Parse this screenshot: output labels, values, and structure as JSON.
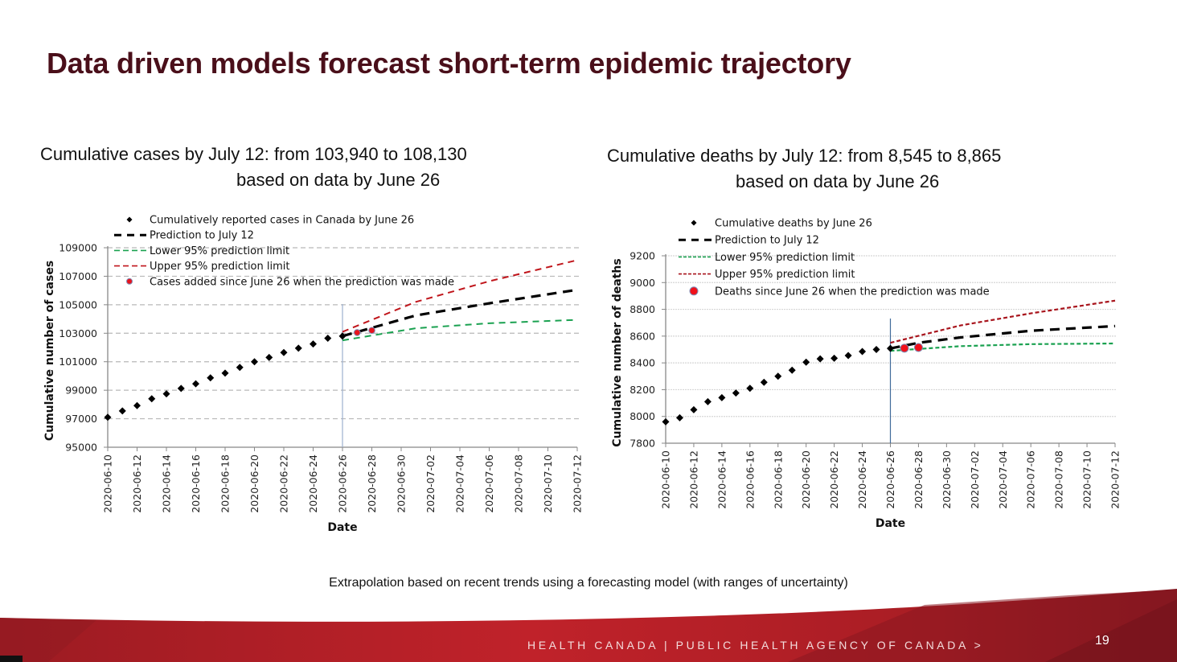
{
  "slide": {
    "title": "Data driven models forecast short-term epidemic trajectory",
    "footnote": "Extrapolation based on recent trends using a forecasting model (with ranges of uncertainty)",
    "footer": "HEALTH CANADA | PUBLIC HEALTH AGENCY OF CANADA >",
    "page_number": "19",
    "colors": {
      "title": "#4a0f1a",
      "footer_red": "#b3202a",
      "footer_dark": "#7d1520"
    }
  },
  "left_panel": {
    "heading_line1": "Cumulative cases by July 12:  from 103,940 to 108,130",
    "heading_line2": "based on data by June 26"
  },
  "right_panel": {
    "heading_line1": "Cumulative deaths by July 12:  from 8,545 to 8,865",
    "heading_line2": "based on data by June 26"
  },
  "chart_data": [
    {
      "type": "scatter",
      "title": "Cumulative cases by July 12: from 103,940 to 108,130",
      "xlabel": "Date",
      "ylabel": "Cumulative number of cases",
      "ylim": [
        95000,
        109000
      ],
      "yticks": [
        "95000",
        "97000",
        "99000",
        "101000",
        "103000",
        "105000",
        "107000",
        "109000"
      ],
      "x_range": [
        "2020-06-10",
        "2020-07-12"
      ],
      "xticks": [
        "2020-06-10",
        "2020-06-12",
        "2020-06-14",
        "2020-06-16",
        "2020-06-18",
        "2020-06-20",
        "2020-06-22",
        "2020-06-24",
        "2020-06-26",
        "2020-06-28",
        "2020-06-30",
        "2020-07-02",
        "2020-07-04",
        "2020-07-06",
        "2020-07-08",
        "2020-07-10",
        "2020-07-12"
      ],
      "grid": "horizontal-dashed",
      "vline": "2020-06-26",
      "legend_position": "top-left",
      "legend": [
        {
          "label": "Cumulatively reported cases in Canada by June 26",
          "style": "diamond",
          "color": "#000000"
        },
        {
          "label": "Prediction to July 12",
          "style": "dash-thick",
          "color": "#000000"
        },
        {
          "label": "Lower 95% prediction limit",
          "style": "dash",
          "color": "#1aa150"
        },
        {
          "label": "Upper 95% prediction limit",
          "style": "dash",
          "color": "#c0151b"
        },
        {
          "label": "Cases added since June 26 when the prediction was made",
          "style": "dot",
          "color": "#e8141d"
        }
      ],
      "series": [
        {
          "name": "Cumulatively reported cases in Canada by June 26",
          "kind": "points",
          "x": [
            "2020-06-10",
            "2020-06-11",
            "2020-06-12",
            "2020-06-13",
            "2020-06-14",
            "2020-06-15",
            "2020-06-16",
            "2020-06-17",
            "2020-06-18",
            "2020-06-19",
            "2020-06-20",
            "2020-06-21",
            "2020-06-22",
            "2020-06-23",
            "2020-06-24",
            "2020-06-25",
            "2020-06-26"
          ],
          "values": [
            97100,
            97550,
            97920,
            98400,
            98750,
            99130,
            99450,
            99870,
            100200,
            100600,
            101000,
            101300,
            101650,
            101950,
            102250,
            102650,
            102800
          ]
        },
        {
          "name": "Prediction to July 12",
          "kind": "line",
          "x": [
            "2020-06-26",
            "2020-07-01",
            "2020-07-06",
            "2020-07-12"
          ],
          "values": [
            102800,
            104250,
            105100,
            106050
          ]
        },
        {
          "name": "Lower 95% prediction limit",
          "kind": "line",
          "x": [
            "2020-06-26",
            "2020-07-01",
            "2020-07-06",
            "2020-07-12"
          ],
          "values": [
            102500,
            103350,
            103700,
            103940
          ]
        },
        {
          "name": "Upper 95% prediction limit",
          "kind": "line",
          "x": [
            "2020-06-26",
            "2020-07-01",
            "2020-07-06",
            "2020-07-12"
          ],
          "values": [
            103100,
            105200,
            106650,
            108130
          ]
        },
        {
          "name": "Cases added since June 26 when the prediction was made",
          "kind": "dots",
          "x": [
            "2020-06-27",
            "2020-06-28"
          ],
          "values": [
            103050,
            103200
          ]
        }
      ]
    },
    {
      "type": "scatter",
      "title": "Cumulative deaths by July 12: from 8,545 to 8,865",
      "xlabel": "Date",
      "ylabel": "Cumulative number of deaths",
      "ylim": [
        7800,
        9200
      ],
      "yticks": [
        "7800",
        "8000",
        "8200",
        "8400",
        "8600",
        "8800",
        "9000",
        "9200"
      ],
      "x_range": [
        "2020-06-10",
        "2020-07-12"
      ],
      "xticks": [
        "2020-06-10",
        "2020-06-12",
        "2020-06-14",
        "2020-06-16",
        "2020-06-18",
        "2020-06-20",
        "2020-06-22",
        "2020-06-24",
        "2020-06-26",
        "2020-06-28",
        "2020-06-30",
        "2020-07-02",
        "2020-07-04",
        "2020-07-06",
        "2020-07-08",
        "2020-07-10",
        "2020-07-12"
      ],
      "grid": "horizontal-solid-light",
      "vline": "2020-06-26",
      "legend_position": "top-left",
      "legend": [
        {
          "label": "Cumulative deaths by June 26",
          "style": "diamond",
          "color": "#000000"
        },
        {
          "label": "Prediction to July 12",
          "style": "dash-thick",
          "color": "#000000"
        },
        {
          "label": "Lower 95% prediction limit",
          "style": "dash-fine",
          "color": "#1aa150"
        },
        {
          "label": "Upper 95% prediction limit",
          "style": "dash-fine",
          "color": "#a8141c"
        },
        {
          "label": "Deaths since June 26 when the prediction was made",
          "style": "dot",
          "color": "#f0101a"
        }
      ],
      "series": [
        {
          "name": "Cumulative deaths by June 26",
          "kind": "points",
          "x": [
            "2020-06-10",
            "2020-06-11",
            "2020-06-12",
            "2020-06-13",
            "2020-06-14",
            "2020-06-15",
            "2020-06-16",
            "2020-06-17",
            "2020-06-18",
            "2020-06-19",
            "2020-06-20",
            "2020-06-21",
            "2020-06-22",
            "2020-06-23",
            "2020-06-24",
            "2020-06-25",
            "2020-06-26"
          ],
          "values": [
            7960,
            7990,
            8050,
            8110,
            8140,
            8175,
            8210,
            8255,
            8300,
            8345,
            8405,
            8430,
            8435,
            8455,
            8485,
            8500,
            8508
          ]
        },
        {
          "name": "Prediction to July 12",
          "kind": "line",
          "x": [
            "2020-06-26",
            "2020-06-28",
            "2020-07-01",
            "2020-07-06",
            "2020-07-12"
          ],
          "values": [
            8508,
            8550,
            8590,
            8640,
            8675
          ]
        },
        {
          "name": "Lower 95% prediction limit",
          "kind": "line",
          "x": [
            "2020-06-26",
            "2020-07-01",
            "2020-07-06",
            "2020-07-12"
          ],
          "values": [
            8490,
            8525,
            8540,
            8545
          ]
        },
        {
          "name": "Upper 95% prediction limit",
          "kind": "line",
          "x": [
            "2020-06-26",
            "2020-07-01",
            "2020-07-06",
            "2020-07-12"
          ],
          "values": [
            8550,
            8680,
            8770,
            8865
          ]
        },
        {
          "name": "Deaths since June 26 when the prediction was made",
          "kind": "dots",
          "x": [
            "2020-06-27",
            "2020-06-28"
          ],
          "values": [
            8510,
            8515
          ]
        }
      ]
    }
  ]
}
